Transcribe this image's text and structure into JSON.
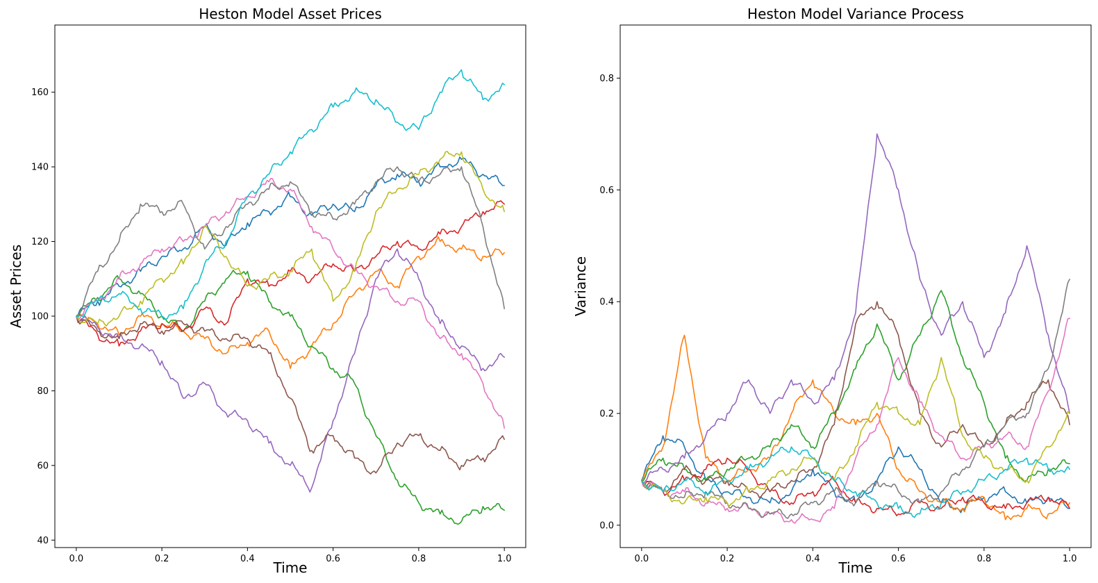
{
  "chart_data": [
    {
      "type": "line",
      "title": "Heston Model Asset Prices",
      "xlabel": "Time",
      "ylabel": "Asset Prices",
      "xlim": [
        -0.05,
        1.05
      ],
      "ylim": [
        38,
        178
      ],
      "xticks": [
        0.0,
        0.2,
        0.4,
        0.6,
        0.8,
        1.0
      ],
      "xtick_labels": [
        "0.0",
        "0.2",
        "0.4",
        "0.6",
        "0.8",
        "1.0"
      ],
      "yticks": [
        40,
        60,
        80,
        100,
        120,
        140,
        160
      ],
      "ytick_labels": [
        "40",
        "60",
        "80",
        "100",
        "120",
        "140",
        "160"
      ],
      "grid": false,
      "x": [
        0.0,
        0.05,
        0.1,
        0.15,
        0.2,
        0.25,
        0.3,
        0.35,
        0.4,
        0.45,
        0.5,
        0.55,
        0.6,
        0.65,
        0.7,
        0.75,
        0.8,
        0.85,
        0.9,
        0.95,
        1.0
      ],
      "series": [
        {
          "color": "#1f77b4",
          "values": [
            100,
            104,
            108,
            112,
            116,
            118,
            124,
            119,
            125,
            128,
            132,
            127,
            130,
            128,
            135,
            138,
            136,
            140,
            142,
            138,
            135
          ]
        },
        {
          "color": "#ff7f0e",
          "values": [
            100,
            98,
            95,
            100,
            98,
            96,
            94,
            90,
            93,
            96,
            86,
            92,
            98,
            106,
            112,
            108,
            116,
            120,
            118,
            116,
            117
          ]
        },
        {
          "color": "#2ca02c",
          "values": [
            100,
            105,
            110,
            106,
            100,
            96,
            104,
            110,
            112,
            104,
            100,
            92,
            86,
            82,
            68,
            56,
            50,
            47,
            45,
            49,
            48
          ]
        },
        {
          "color": "#d62728",
          "values": [
            100,
            95,
            92,
            96,
            98,
            96,
            102,
            98,
            110,
            108,
            112,
            110,
            114,
            112,
            116,
            120,
            118,
            122,
            124,
            128,
            130
          ]
        },
        {
          "color": "#9467bd",
          "values": [
            100,
            97,
            94,
            92,
            88,
            78,
            82,
            74,
            72,
            66,
            60,
            54,
            72,
            90,
            110,
            118,
            110,
            98,
            92,
            86,
            89
          ]
        },
        {
          "color": "#8c564b",
          "values": [
            100,
            96,
            94,
            98,
            96,
            98,
            96,
            94,
            94,
            90,
            78,
            64,
            68,
            62,
            58,
            66,
            68,
            64,
            60,
            62,
            67
          ]
        },
        {
          "color": "#e377c2",
          "values": [
            100,
            104,
            110,
            114,
            118,
            120,
            124,
            128,
            132,
            136,
            134,
            124,
            118,
            112,
            108,
            104,
            104,
            94,
            90,
            82,
            70
          ]
        },
        {
          "color": "#7f7f7f",
          "values": [
            100,
            112,
            120,
            130,
            128,
            130,
            118,
            124,
            130,
            134,
            136,
            128,
            126,
            130,
            136,
            140,
            136,
            138,
            140,
            124,
            102
          ]
        },
        {
          "color": "#bcbd22",
          "values": [
            100,
            98,
            100,
            104,
            110,
            114,
            124,
            116,
            108,
            110,
            112,
            118,
            104,
            112,
            128,
            134,
            138,
            142,
            144,
            134,
            128
          ]
        },
        {
          "color": "#17becf",
          "values": [
            100,
            104,
            106,
            102,
            100,
            102,
            114,
            120,
            132,
            138,
            144,
            150,
            156,
            160,
            158,
            152,
            150,
            160,
            166,
            158,
            162
          ]
        }
      ]
    },
    {
      "type": "line",
      "title": "Heston Model Variance Process",
      "xlabel": "Time",
      "ylabel": "Variance",
      "xlim": [
        -0.05,
        1.05
      ],
      "ylim": [
        -0.04,
        0.895
      ],
      "xticks": [
        0.0,
        0.2,
        0.4,
        0.6,
        0.8,
        1.0
      ],
      "xtick_labels": [
        "0.0",
        "0.2",
        "0.4",
        "0.6",
        "0.8",
        "1.0"
      ],
      "yticks": [
        0.0,
        0.2,
        0.4,
        0.6,
        0.8
      ],
      "ytick_labels": [
        "0.0",
        "0.2",
        "0.4",
        "0.6",
        "0.8"
      ],
      "grid": false,
      "x": [
        0.0,
        0.05,
        0.1,
        0.15,
        0.2,
        0.25,
        0.3,
        0.35,
        0.4,
        0.45,
        0.5,
        0.55,
        0.6,
        0.65,
        0.7,
        0.75,
        0.8,
        0.85,
        0.9,
        0.95,
        1.0
      ],
      "series": [
        {
          "color": "#1f77b4",
          "values": [
            0.08,
            0.16,
            0.14,
            0.08,
            0.06,
            0.05,
            0.04,
            0.06,
            0.1,
            0.06,
            0.04,
            0.08,
            0.14,
            0.1,
            0.04,
            0.03,
            0.05,
            0.06,
            0.04,
            0.05,
            0.03
          ]
        },
        {
          "color": "#ff7f0e",
          "values": [
            0.08,
            0.14,
            0.34,
            0.12,
            0.08,
            0.1,
            0.12,
            0.2,
            0.26,
            0.2,
            0.18,
            0.2,
            0.1,
            0.06,
            0.04,
            0.03,
            0.05,
            0.01,
            0.03,
            0.02,
            0.04
          ]
        },
        {
          "color": "#2ca02c",
          "values": [
            0.08,
            0.12,
            0.1,
            0.08,
            0.1,
            0.12,
            0.14,
            0.18,
            0.14,
            0.2,
            0.28,
            0.36,
            0.26,
            0.34,
            0.42,
            0.3,
            0.22,
            0.12,
            0.08,
            0.1,
            0.11
          ]
        },
        {
          "color": "#d62728",
          "values": [
            0.08,
            0.06,
            0.08,
            0.1,
            0.12,
            0.1,
            0.06,
            0.04,
            0.06,
            0.08,
            0.04,
            0.03,
            0.02,
            0.04,
            0.03,
            0.05,
            0.04,
            0.03,
            0.04,
            0.05,
            0.03
          ]
        },
        {
          "color": "#9467bd",
          "values": [
            0.08,
            0.1,
            0.12,
            0.16,
            0.2,
            0.26,
            0.2,
            0.26,
            0.22,
            0.26,
            0.38,
            0.7,
            0.6,
            0.44,
            0.34,
            0.4,
            0.3,
            0.38,
            0.5,
            0.34,
            0.2
          ]
        },
        {
          "color": "#8c564b",
          "values": [
            0.08,
            0.06,
            0.1,
            0.08,
            0.08,
            0.06,
            0.06,
            0.08,
            0.1,
            0.18,
            0.36,
            0.4,
            0.34,
            0.2,
            0.14,
            0.18,
            0.14,
            0.18,
            0.22,
            0.26,
            0.18
          ]
        },
        {
          "color": "#e377c2",
          "values": [
            0.08,
            0.06,
            0.06,
            0.04,
            0.03,
            0.03,
            0.02,
            0.01,
            0.01,
            0.03,
            0.12,
            0.18,
            0.3,
            0.22,
            0.16,
            0.12,
            0.14,
            0.16,
            0.14,
            0.24,
            0.37
          ]
        },
        {
          "color": "#7f7f7f",
          "values": [
            0.08,
            0.06,
            0.05,
            0.06,
            0.04,
            0.03,
            0.02,
            0.02,
            0.04,
            0.06,
            0.04,
            0.08,
            0.06,
            0.04,
            0.06,
            0.1,
            0.14,
            0.18,
            0.2,
            0.28,
            0.44
          ]
        },
        {
          "color": "#bcbd22",
          "values": [
            0.08,
            0.06,
            0.04,
            0.05,
            0.04,
            0.06,
            0.08,
            0.1,
            0.12,
            0.08,
            0.14,
            0.22,
            0.2,
            0.18,
            0.3,
            0.16,
            0.12,
            0.1,
            0.08,
            0.14,
            0.2
          ]
        },
        {
          "color": "#17becf",
          "values": [
            0.08,
            0.06,
            0.08,
            0.06,
            0.08,
            0.1,
            0.12,
            0.14,
            0.12,
            0.08,
            0.06,
            0.04,
            0.03,
            0.02,
            0.04,
            0.06,
            0.08,
            0.1,
            0.12,
            0.1,
            0.1
          ]
        }
      ]
    }
  ]
}
